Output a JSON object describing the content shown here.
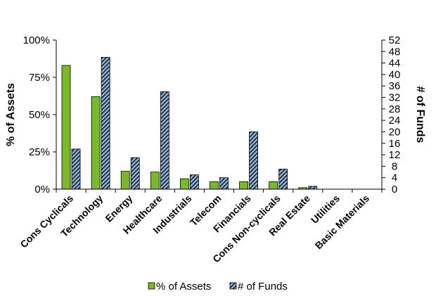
{
  "chart_data": {
    "type": "bar",
    "categories": [
      "Cons Cyclicals",
      "Technology",
      "Energy",
      "Healthcare",
      "Industrials",
      "Telecom",
      "Financials",
      "Cons Non-cyclicals",
      "Real Estate",
      "Utilities",
      "Basic Materials"
    ],
    "series": [
      {
        "name": "% of Assets",
        "axis": "left",
        "color": "#7ab929",
        "values": [
          83,
          62,
          12,
          11.5,
          7,
          5,
          5,
          5,
          1,
          0,
          0
        ]
      },
      {
        "name": "# of Funds",
        "axis": "right",
        "color": "#8fb8e0",
        "pattern": "diagonal-stripes-black",
        "values": [
          14,
          46,
          11,
          34,
          5,
          4,
          20,
          7,
          1,
          0,
          0
        ]
      }
    ],
    "y_left": {
      "label": "% of Assets",
      "range": [
        0,
        100
      ],
      "ticks": [
        0,
        25,
        50,
        75,
        100
      ],
      "tick_labels": [
        "0%",
        "25%",
        "50%",
        "75%",
        "100%"
      ]
    },
    "y_right": {
      "label": "# of Funds",
      "range": [
        0,
        52
      ],
      "ticks": [
        0,
        4,
        8,
        12,
        16,
        20,
        24,
        28,
        32,
        36,
        40,
        44,
        48,
        52
      ],
      "tick_labels": [
        "0",
        "4",
        "8",
        "12",
        "16",
        "20",
        "24",
        "28",
        "32",
        "36",
        "40",
        "44",
        "48",
        "52"
      ]
    },
    "legend": {
      "position": "bottom",
      "entries": [
        "% of Assets",
        "# of Funds"
      ]
    },
    "grid": false
  }
}
